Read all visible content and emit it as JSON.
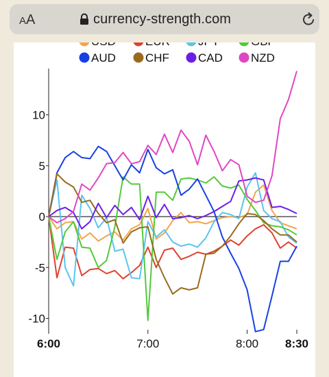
{
  "browser": {
    "aa_small": "A",
    "aa_large": "A",
    "url": "currency-strength.com",
    "lock_icon": "lock-icon",
    "reload_icon": "reload-icon"
  },
  "chart_data": {
    "type": "line",
    "xlabel": "",
    "ylabel": "",
    "x_ticks": [
      "6:00",
      "7:00",
      "8:00",
      "8:30"
    ],
    "x_tick_positions_min": [
      0,
      60,
      120,
      150
    ],
    "y_ticks": [
      -10,
      -5,
      0,
      5,
      10
    ],
    "ylim": [
      -11.3,
      14.3
    ],
    "xlim": [
      0,
      150
    ],
    "legend_placement": "top",
    "zero_line": true,
    "series": [
      {
        "name": "USD",
        "color": "#f2a54a",
        "legend_visible": false,
        "x": [
          0,
          5,
          10,
          15,
          20,
          25,
          30,
          35,
          40,
          45,
          50,
          55,
          60,
          65,
          70,
          75,
          80,
          85,
          90,
          95,
          100,
          105,
          110,
          115,
          120,
          125,
          130,
          135,
          140,
          145,
          150
        ],
        "y": [
          0,
          -1.2,
          -0.6,
          -0.5,
          -2.2,
          -1.6,
          -2.4,
          -1.9,
          -1.5,
          -2.3,
          -1.2,
          -0.8,
          0.8,
          -2.2,
          -1.6,
          -0.4,
          0.4,
          -0.6,
          -0.5,
          -0.7,
          -0.4,
          -0.1,
          0.0,
          -0.1,
          0.2,
          2.4,
          3.1,
          0.6,
          -0.6,
          -0.9,
          -1.2
        ]
      },
      {
        "name": "EUR",
        "color": "#e0402e",
        "legend_visible": false,
        "x": [
          0,
          5,
          10,
          15,
          20,
          25,
          30,
          35,
          40,
          45,
          50,
          55,
          60,
          65,
          70,
          75,
          80,
          85,
          90,
          95,
          100,
          105,
          110,
          115,
          120,
          125,
          130,
          135,
          140,
          145,
          150
        ],
        "y": [
          0,
          -6.0,
          -3.0,
          -3.1,
          -5.8,
          -5.2,
          -5.1,
          -5.6,
          -5.3,
          -6.1,
          -5.5,
          -4.8,
          -3.0,
          -5.0,
          -3.3,
          -3.1,
          -4.2,
          -3.9,
          -3.5,
          -3.7,
          -3.4,
          -2.9,
          -2.3,
          -2.8,
          -1.9,
          -1.2,
          -0.8,
          -1.6,
          -3.1,
          -2.5,
          -3.1
        ]
      },
      {
        "name": "JPY",
        "color": "#5bc4ee",
        "legend_visible": false,
        "x": [
          0,
          5,
          10,
          15,
          20,
          25,
          30,
          35,
          40,
          45,
          50,
          55,
          60,
          65,
          70,
          75,
          80,
          85,
          90,
          95,
          100,
          105,
          110,
          115,
          120,
          125,
          130,
          135,
          140,
          145,
          150
        ],
        "y": [
          0,
          3.6,
          -5.0,
          -6.8,
          2.1,
          0.8,
          -1.1,
          -0.1,
          -3.4,
          -3.2,
          -6.0,
          -6.1,
          -0.5,
          -2.0,
          -1.3,
          -2.5,
          -2.9,
          -2.7,
          -3.0,
          -2.1,
          -0.5,
          0.4,
          0.2,
          -0.2,
          2.9,
          4.3,
          0.6,
          -0.2,
          -0.5,
          -2.0,
          -2.6
        ]
      },
      {
        "name": "GBP",
        "color": "#53c93a",
        "legend_visible": false,
        "x": [
          0,
          5,
          10,
          15,
          20,
          25,
          30,
          35,
          40,
          45,
          50,
          55,
          60,
          65,
          70,
          75,
          80,
          85,
          90,
          95,
          100,
          105,
          110,
          115,
          120,
          125,
          130,
          135,
          140,
          145,
          150
        ],
        "y": [
          0,
          -4.2,
          -1.5,
          -0.5,
          -3.0,
          -3.1,
          -5.0,
          -4.3,
          -1.0,
          3.9,
          3.2,
          3.2,
          -10.2,
          2.4,
          2.4,
          1.6,
          3.7,
          3.8,
          3.6,
          3.3,
          3.9,
          3.0,
          2.8,
          3.1,
          1.7,
          0.6,
          -0.6,
          -0.9,
          -1.0,
          -1.3,
          -1.8
        ]
      },
      {
        "name": "AUD",
        "color": "#1640e5",
        "legend_visible": true,
        "x": [
          0,
          5,
          10,
          15,
          20,
          25,
          30,
          35,
          40,
          45,
          50,
          55,
          60,
          65,
          70,
          75,
          80,
          85,
          90,
          95,
          100,
          105,
          110,
          115,
          120,
          125,
          130,
          135,
          140,
          145,
          150
        ],
        "y": [
          0,
          4.3,
          5.8,
          6.4,
          5.8,
          5.7,
          6.9,
          6.4,
          5.0,
          3.6,
          5.1,
          4.3,
          6.6,
          4.8,
          4.2,
          4.6,
          2.1,
          2.7,
          3.7,
          2.1,
          0.5,
          -2.0,
          -3.6,
          -5.1,
          -7.2,
          -11.3,
          -11.1,
          -7.8,
          -4.4,
          -4.4,
          -2.9
        ]
      },
      {
        "name": "CHF",
        "color": "#9a6a1c",
        "legend_visible": true,
        "x": [
          0,
          5,
          10,
          15,
          20,
          25,
          30,
          35,
          40,
          45,
          50,
          55,
          60,
          65,
          70,
          75,
          80,
          85,
          90,
          95,
          100,
          105,
          110,
          115,
          120,
          125,
          130,
          135,
          140,
          145,
          150
        ],
        "y": [
          0,
          4.2,
          3.4,
          2.9,
          1.4,
          1.6,
          0.3,
          -0.6,
          -0.3,
          -2.6,
          -1.5,
          -1.1,
          -1.0,
          -4.2,
          -6.0,
          -7.6,
          -7.0,
          -7.2,
          -7.0,
          -3.7,
          -3.6,
          -2.9,
          -1.9,
          -0.7,
          0.3,
          0.2,
          -0.4,
          -1.2,
          -1.8,
          -1.8,
          -2.5
        ]
      },
      {
        "name": "CAD",
        "color": "#6b1ee8",
        "legend_visible": true,
        "x": [
          0,
          5,
          10,
          15,
          20,
          25,
          30,
          35,
          40,
          45,
          50,
          55,
          60,
          65,
          70,
          75,
          80,
          85,
          90,
          95,
          100,
          105,
          110,
          115,
          120,
          125,
          130,
          135,
          140,
          145,
          150
        ],
        "y": [
          0,
          0.6,
          0.9,
          0.4,
          -1.2,
          -0.5,
          1.3,
          -0.1,
          1.1,
          0.2,
          0.9,
          -0.3,
          2.0,
          -0.1,
          1.2,
          -0.2,
          -0.1,
          0.1,
          -0.2,
          0.1,
          0.5,
          1.0,
          1.5,
          3.5,
          3.6,
          3.8,
          3.6,
          0.9,
          1.0,
          0.7,
          0.3
        ]
      },
      {
        "name": "NZD",
        "color": "#e046c2",
        "legend_visible": true,
        "x": [
          0,
          5,
          10,
          15,
          20,
          25,
          30,
          35,
          40,
          45,
          50,
          55,
          60,
          65,
          70,
          75,
          80,
          85,
          90,
          95,
          100,
          105,
          110,
          115,
          120,
          125,
          130,
          135,
          140,
          145,
          150
        ],
        "y": [
          0,
          -0.6,
          -0.2,
          0.5,
          3.2,
          2.6,
          3.8,
          5.2,
          5.3,
          6.3,
          5.2,
          5.4,
          7.0,
          6.1,
          8.1,
          6.3,
          8.5,
          7.4,
          5.1,
          8.0,
          6.4,
          4.5,
          5.6,
          5.1,
          2.0,
          1.4,
          1.6,
          4.0,
          9.6,
          11.5,
          14.3
        ]
      }
    ]
  }
}
